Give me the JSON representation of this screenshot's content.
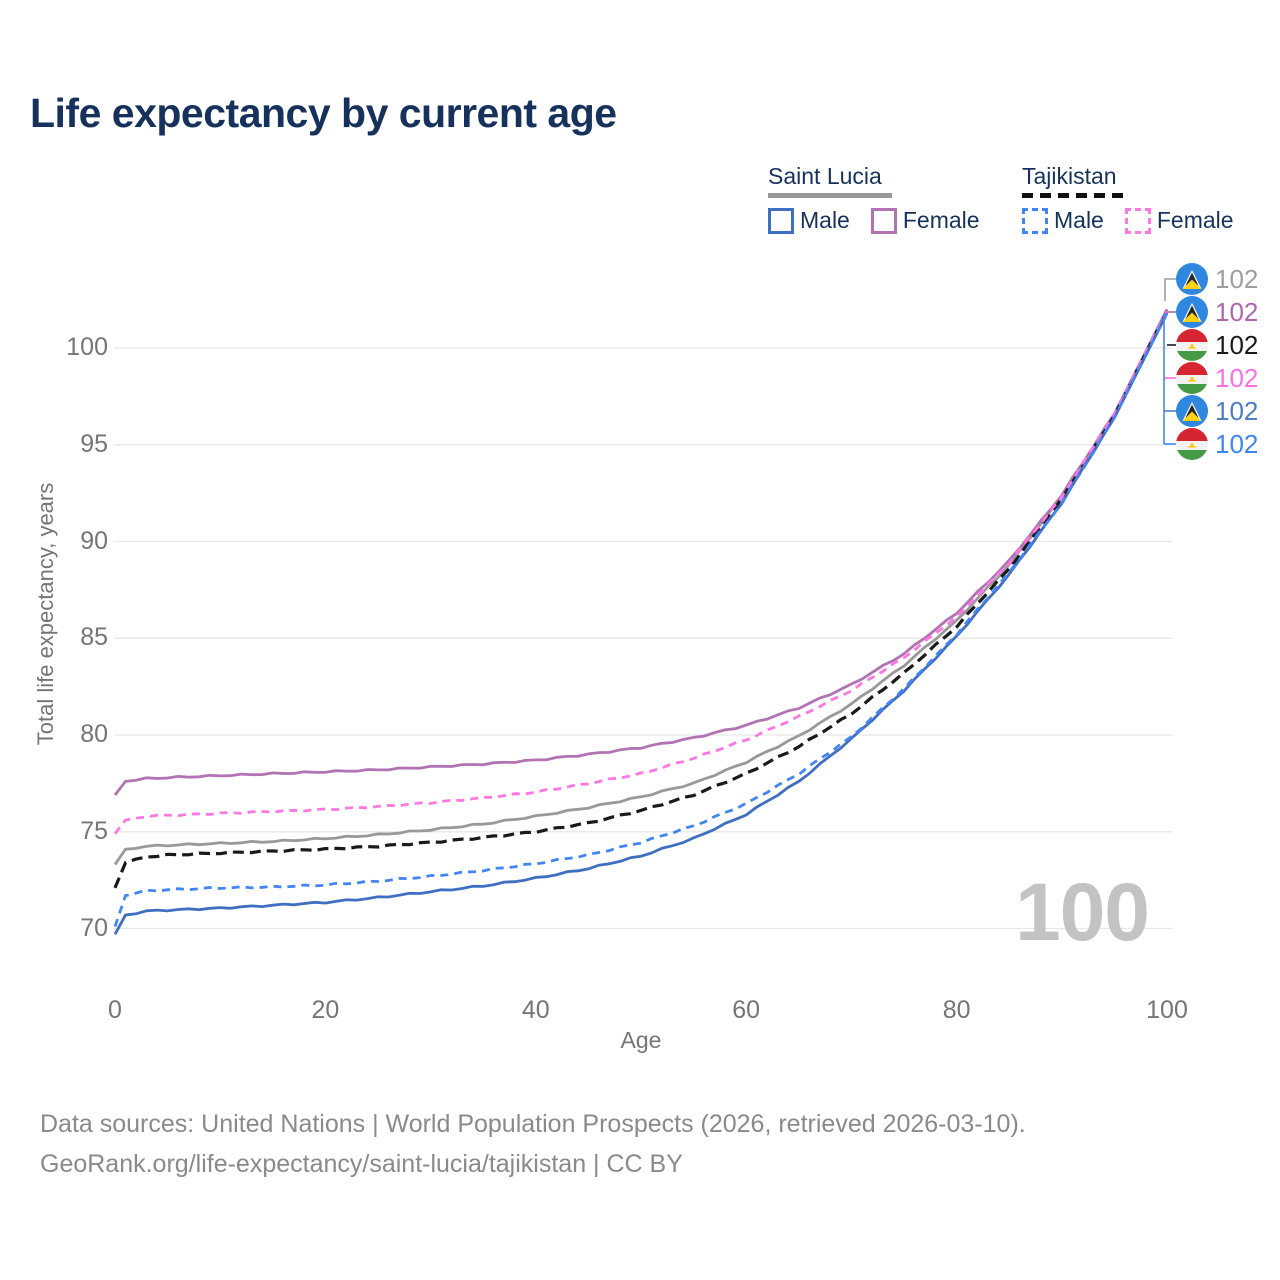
{
  "title": "Life expectancy by current age",
  "legend": {
    "groups": [
      {
        "name": "Saint Lucia",
        "line_style": "solid",
        "underline_color": "#999999",
        "items": [
          {
            "label": "Male",
            "color": "#3f6fc1"
          },
          {
            "label": "Female",
            "color": "#b273b4"
          }
        ]
      },
      {
        "name": "Tajikistan",
        "line_style": "dashed",
        "underline_color": "#111111",
        "items": [
          {
            "label": "Male",
            "color": "#4285f4"
          },
          {
            "label": "Female",
            "color": "#ff77e2"
          }
        ]
      }
    ]
  },
  "chart_data": {
    "type": "line",
    "title": "Life expectancy by current age",
    "xlabel": "Age",
    "ylabel": "Total life expectancy, years",
    "x_ticks": [
      0,
      20,
      40,
      60,
      80,
      100
    ],
    "y_ticks": [
      70,
      75,
      80,
      85,
      90,
      95,
      100
    ],
    "xlim": [
      0,
      100
    ],
    "ylim": [
      67,
      104
    ],
    "grid": "horizontal-only",
    "watermark": "100",
    "ages": [
      0,
      1,
      3,
      5,
      10,
      15,
      20,
      25,
      30,
      35,
      40,
      45,
      50,
      55,
      60,
      65,
      70,
      75,
      80,
      85,
      90,
      95,
      100
    ],
    "series": [
      {
        "name": "Saint Lucia",
        "country": "Saint Lucia",
        "sex": "All",
        "flag": "saint-lucia",
        "color": "#999999",
        "dash": "solid",
        "end_label": "102",
        "label_color": "#9e9e9e",
        "values": [
          73.3,
          74.1,
          74.25,
          74.3,
          74.4,
          74.5,
          74.65,
          74.85,
          75.1,
          75.4,
          75.8,
          76.25,
          76.8,
          77.5,
          78.6,
          79.95,
          81.6,
          83.6,
          85.9,
          88.8,
          92.3,
          96.6,
          101.9
        ]
      },
      {
        "name": "Saint Lucia Female",
        "country": "Saint Lucia",
        "sex": "Female",
        "flag": "saint-lucia",
        "color": "#b273b4",
        "dash": "solid",
        "end_label": "102",
        "label_color": "#b165ae",
        "values": [
          76.9,
          77.6,
          77.75,
          77.8,
          77.9,
          78.0,
          78.1,
          78.2,
          78.35,
          78.5,
          78.7,
          79.0,
          79.35,
          79.85,
          80.5,
          81.4,
          82.6,
          84.2,
          86.3,
          89.0,
          92.4,
          96.6,
          102.0
        ]
      },
      {
        "name": "Tajikistan",
        "country": "Tajikistan",
        "sex": "All",
        "flag": "tajikistan",
        "color": "#1a1a1a",
        "dash": "dashed",
        "end_label": "102",
        "label_color": "#1a1a1a",
        "values": [
          72.1,
          73.4,
          73.7,
          73.8,
          73.9,
          74.0,
          74.1,
          74.25,
          74.45,
          74.7,
          75.0,
          75.45,
          76.1,
          76.9,
          78.0,
          79.4,
          81.1,
          83.2,
          85.6,
          88.6,
          92.2,
          96.5,
          101.9
        ]
      },
      {
        "name": "Tajikistan Female",
        "country": "Tajikistan",
        "sex": "Female",
        "flag": "tajikistan",
        "color": "#ff77e2",
        "dash": "dashed",
        "end_label": "102",
        "label_color": "#ff6ee2",
        "values": [
          74.9,
          75.6,
          75.8,
          75.85,
          75.95,
          76.05,
          76.15,
          76.3,
          76.5,
          76.75,
          77.05,
          77.5,
          78.0,
          78.8,
          79.75,
          80.95,
          82.3,
          84.0,
          86.1,
          88.9,
          92.3,
          96.6,
          101.9
        ]
      },
      {
        "name": "Saint Lucia Male",
        "country": "Saint Lucia",
        "sex": "Male",
        "flag": "saint-lucia",
        "color": "#3f6fc1",
        "dash": "solid",
        "end_label": "102",
        "label_color": "#4d7dc4",
        "values": [
          69.7,
          70.7,
          70.9,
          70.95,
          71.05,
          71.2,
          71.35,
          71.6,
          71.9,
          72.2,
          72.6,
          73.1,
          73.75,
          74.65,
          75.9,
          77.6,
          79.8,
          82.3,
          85.1,
          88.3,
          92.0,
          96.4,
          101.8
        ]
      },
      {
        "name": "Tajikistan Male",
        "country": "Tajikistan",
        "sex": "Male",
        "flag": "tajikistan",
        "color": "#4285f4",
        "dash": "dashed",
        "end_label": "102",
        "label_color": "#3e86f4",
        "values": [
          70.1,
          71.7,
          71.95,
          72.0,
          72.1,
          72.15,
          72.25,
          72.45,
          72.7,
          73.0,
          73.35,
          73.8,
          74.45,
          75.3,
          76.45,
          78.0,
          79.9,
          82.4,
          85.2,
          88.4,
          92.0,
          96.4,
          101.8
        ]
      }
    ]
  },
  "footer": {
    "line1": "Data sources: United Nations | World Population Prospects (2026, retrieved 2026-03-10).",
    "line2": "GeoRank.org/life-expectancy/saint-lucia/tajikistan | CC BY"
  }
}
